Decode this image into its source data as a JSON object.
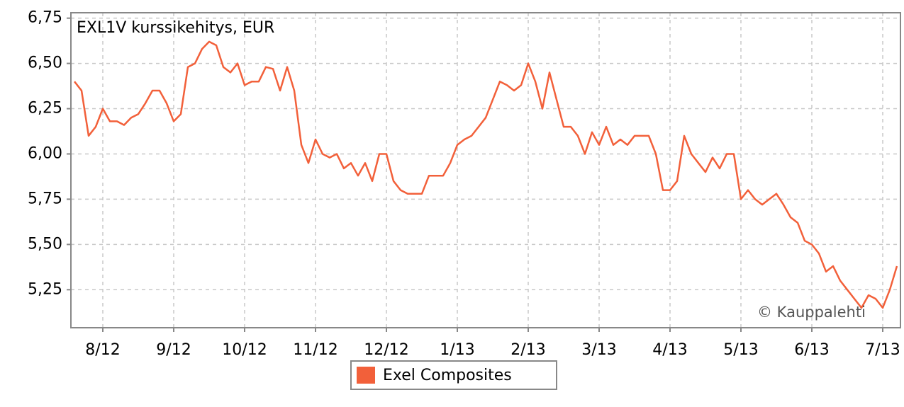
{
  "chart_data": {
    "type": "line",
    "title": "EXL1V kurssikehitys, EUR",
    "credit": "© Kauppalehti",
    "categories": [
      null,
      null,
      null,
      null,
      "8/12",
      null,
      null,
      null,
      null,
      null,
      null,
      null,
      null,
      null,
      "9/12",
      null,
      null,
      null,
      null,
      null,
      null,
      null,
      null,
      null,
      "10/12",
      null,
      null,
      null,
      null,
      null,
      null,
      null,
      null,
      null,
      "11/12",
      null,
      null,
      null,
      null,
      null,
      null,
      null,
      null,
      null,
      "12/12",
      null,
      null,
      null,
      null,
      null,
      null,
      null,
      null,
      null,
      "1/13",
      null,
      null,
      null,
      null,
      null,
      null,
      null,
      null,
      null,
      "2/13",
      null,
      null,
      null,
      null,
      null,
      null,
      null,
      null,
      null,
      "3/13",
      null,
      null,
      null,
      null,
      null,
      null,
      null,
      null,
      null,
      "4/13",
      null,
      null,
      null,
      null,
      null,
      null,
      null,
      null,
      null,
      "5/13",
      null,
      null,
      null,
      null,
      null,
      null,
      null,
      null,
      null,
      "6/13",
      null,
      null,
      null,
      null,
      null,
      null,
      null,
      null,
      null,
      "7/13",
      null,
      null
    ],
    "series": [
      {
        "name": "Exel Composites",
        "color": "#f2603a",
        "values": [
          6.4,
          6.35,
          6.1,
          6.15,
          6.25,
          6.18,
          6.18,
          6.16,
          6.2,
          6.22,
          6.28,
          6.35,
          6.35,
          6.28,
          6.18,
          6.22,
          6.48,
          6.5,
          6.58,
          6.62,
          6.6,
          6.48,
          6.45,
          6.5,
          6.38,
          6.4,
          6.4,
          6.48,
          6.47,
          6.35,
          6.48,
          6.35,
          6.05,
          5.95,
          6.08,
          6.0,
          5.98,
          6.0,
          5.92,
          5.95,
          5.88,
          5.95,
          5.85,
          6.0,
          6.0,
          5.85,
          5.8,
          5.78,
          5.78,
          5.78,
          5.88,
          5.88,
          5.88,
          5.95,
          6.05,
          6.08,
          6.1,
          6.15,
          6.2,
          6.3,
          6.4,
          6.38,
          6.35,
          6.38,
          6.5,
          6.4,
          6.25,
          6.45,
          6.3,
          6.15,
          6.15,
          6.1,
          6.0,
          6.12,
          6.05,
          6.15,
          6.05,
          6.08,
          6.05,
          6.1,
          6.1,
          6.1,
          6.0,
          5.8,
          5.8,
          5.85,
          6.1,
          6.0,
          5.95,
          5.9,
          5.98,
          5.92,
          6.0,
          6.0,
          5.75,
          5.8,
          5.75,
          5.72,
          5.75,
          5.78,
          5.72,
          5.65,
          5.62,
          5.52,
          5.5,
          5.45,
          5.35,
          5.38,
          5.3,
          5.25,
          5.2,
          5.15,
          5.22,
          5.2,
          5.15,
          5.25,
          5.38
        ]
      }
    ],
    "ylim": [
      5.04,
      6.78
    ],
    "yticks": [
      {
        "value": 5.25,
        "label": "5,25"
      },
      {
        "value": 5.5,
        "label": "5,50"
      },
      {
        "value": 5.75,
        "label": "5,75"
      },
      {
        "value": 6,
        "label": "6,00"
      },
      {
        "value": 6.25,
        "label": "6,25"
      },
      {
        "value": 6.5,
        "label": "6,50"
      },
      {
        "value": 6.75,
        "label": "6,75"
      }
    ],
    "grid": true
  }
}
